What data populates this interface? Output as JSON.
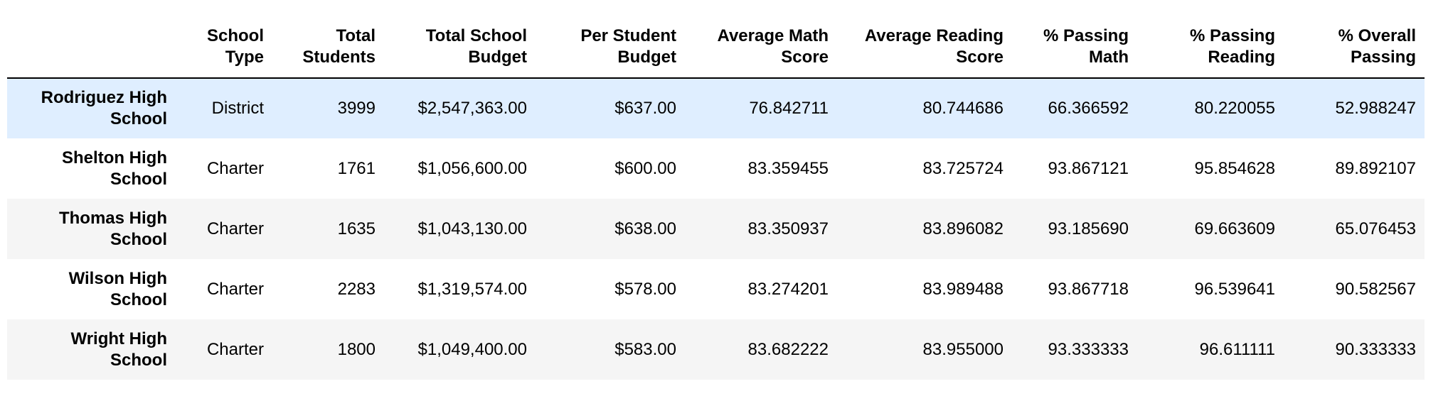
{
  "table": {
    "columns": [
      "School Type",
      "Total Students",
      "Total School Budget",
      "Per Student Budget",
      "Average Math Score",
      "Average Reading Score",
      "% Passing Math",
      "% Passing Reading",
      "% Overall Passing"
    ],
    "rows": [
      {
        "school": "Rodriguez High School",
        "values": [
          "District",
          "3999",
          "$2,547,363.00",
          "$637.00",
          "76.842711",
          "80.744686",
          "66.366592",
          "80.220055",
          "52.988247"
        ]
      },
      {
        "school": "Shelton High School",
        "values": [
          "Charter",
          "1761",
          "$1,056,600.00",
          "$600.00",
          "83.359455",
          "83.725724",
          "93.867121",
          "95.854628",
          "89.892107"
        ]
      },
      {
        "school": "Thomas High School",
        "values": [
          "Charter",
          "1635",
          "$1,043,130.00",
          "$638.00",
          "83.350937",
          "83.896082",
          "93.185690",
          "69.663609",
          "65.076453"
        ]
      },
      {
        "school": "Wilson High School",
        "values": [
          "Charter",
          "2283",
          "$1,319,574.00",
          "$578.00",
          "83.274201",
          "83.989488",
          "93.867718",
          "96.539641",
          "90.582567"
        ]
      },
      {
        "school": "Wright High School",
        "values": [
          "Charter",
          "1800",
          "$1,049,400.00",
          "$583.00",
          "83.682222",
          "83.955000",
          "93.333333",
          "96.611111",
          "90.333333"
        ]
      }
    ],
    "highlight_color": "#dfeeff"
  }
}
